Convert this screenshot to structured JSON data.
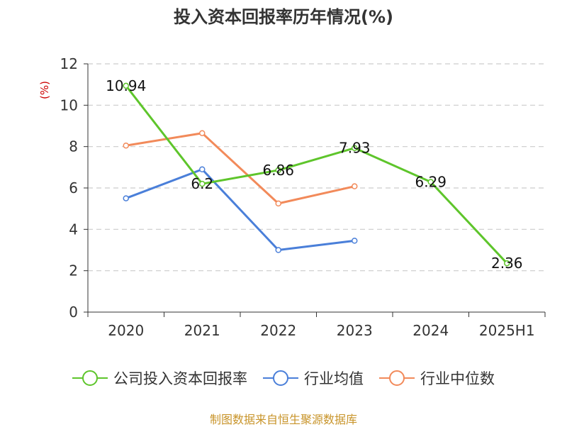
{
  "chart_data": {
    "type": "line",
    "title": "投入资本回报率历年情况(%)",
    "ylabel": "(%)",
    "xlabel": "",
    "categories": [
      "2020",
      "2021",
      "2022",
      "2023",
      "2024",
      "2025H1"
    ],
    "ylim": [
      0,
      12
    ],
    "yticks": [
      0,
      2,
      4,
      6,
      8,
      10,
      12
    ],
    "grid": true,
    "legend_position": "bottom",
    "series": [
      {
        "name": "公司投入资本回报率",
        "color": "#5ec52b",
        "values": [
          10.94,
          6.2,
          6.86,
          7.93,
          6.29,
          2.36
        ],
        "data_labels": [
          "10.94",
          "6.2",
          "6.86",
          "7.93",
          "6.29",
          "2.36"
        ]
      },
      {
        "name": "行业均值",
        "color": "#4a7fd9",
        "values": [
          5.5,
          6.9,
          3.0,
          3.45,
          null,
          null
        ]
      },
      {
        "name": "行业中位数",
        "color": "#f28a5a",
        "values": [
          8.05,
          8.65,
          5.25,
          6.08,
          null,
          null
        ]
      }
    ],
    "source": "制图数据来自恒生聚源数据库"
  }
}
